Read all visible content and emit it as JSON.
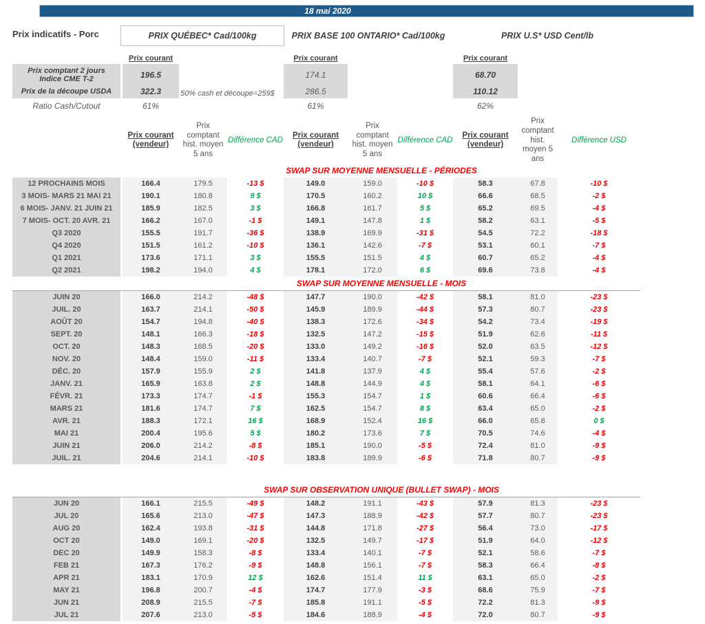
{
  "banner": {
    "date": "18 mai 2020"
  },
  "page_title": "Prix indicatifs - Porc",
  "markets": {
    "quebec": {
      "title": "PRIX QUÉBEC* Cad/100kg"
    },
    "ontario": {
      "title": "PRIX BASE 100 ONTARIO* Cad/100kg"
    },
    "us": {
      "title": "PRIX U.S* USD Cent/lb"
    }
  },
  "prix_courant_label": "Prix courant",
  "spot": {
    "row1_label_line1": "Prix comptant 2 jours",
    "row1_label_line2": "Indice CME T-2",
    "row2_label": "Prix de la découpe USDA",
    "row3_label": "Ratio Cash/Cutout",
    "row1": {
      "qc": "196.5",
      "on": "174.1",
      "us": "68.70"
    },
    "row2": {
      "qc": "322.3",
      "on": "286.5",
      "us": "110.12"
    },
    "row2_note": "50% cash et découpe=259$",
    "row3": {
      "qc": "61%",
      "on": "61%",
      "us": "62%"
    }
  },
  "column_headers": {
    "vendor": "Prix courant (vendeur)",
    "hist": "Prix comptant hist. moyen 5 ans",
    "diff_cad": "Différence CAD",
    "diff_usd": "Différence USD"
  },
  "colors": {
    "banner_blue": "#1e5a8a",
    "section_red": "#ff0000",
    "diff_green": "#00a650",
    "diff_red": "#ee0000",
    "label_gray": "#d9d9d9",
    "band_gray": "#f2f2f2"
  },
  "sections": [
    {
      "title": "SWAP SUR MOYENNE MENSUELLE - PÉRIODES",
      "rows": [
        {
          "label": "12 PROCHAINS MOIS",
          "qc": [
            "166.4",
            "179.5",
            "-13 $"
          ],
          "on": [
            "149.0",
            "159.0",
            "-10 $"
          ],
          "us": [
            "58.3",
            "67.8",
            "-10 $"
          ]
        },
        {
          "label": "3 MOIS- MARS 21 MAI 21",
          "qc": [
            "190.1",
            "180.8",
            "9 $"
          ],
          "on": [
            "170.5",
            "160.2",
            "10 $"
          ],
          "us": [
            "66.6",
            "68.5",
            "-2 $"
          ]
        },
        {
          "label": "6 MOIS- JANV. 21 JUIN 21",
          "qc": [
            "185.9",
            "182.5",
            "3 $"
          ],
          "on": [
            "166.8",
            "161.7",
            "5 $"
          ],
          "us": [
            "65.2",
            "69.5",
            "-4 $"
          ]
        },
        {
          "label": "7 MOIS- OCT. 20 AVR. 21",
          "qc": [
            "166.2",
            "167.0",
            "-1 $"
          ],
          "on": [
            "149.1",
            "147.8",
            "1 $"
          ],
          "us": [
            "58.2",
            "63.1",
            "-5 $"
          ]
        },
        {
          "label": "Q3 2020",
          "qc": [
            "155.5",
            "191.7",
            "-36 $"
          ],
          "on": [
            "138.9",
            "169.9",
            "-31 $"
          ],
          "us": [
            "54.5",
            "72.2",
            "-18 $"
          ]
        },
        {
          "label": "Q4 2020",
          "qc": [
            "151.5",
            "161.2",
            "-10 $"
          ],
          "on": [
            "136.1",
            "142.6",
            "-7 $"
          ],
          "us": [
            "53.1",
            "60.1",
            "-7 $"
          ]
        },
        {
          "label": "Q1 2021",
          "qc": [
            "173.6",
            "171.1",
            "3 $"
          ],
          "on": [
            "155.5",
            "151.5",
            "4 $"
          ],
          "us": [
            "60.7",
            "65.2",
            "-4 $"
          ]
        },
        {
          "label": "Q2 2021",
          "qc": [
            "198.2",
            "194.0",
            "4 $"
          ],
          "on": [
            "178.1",
            "172.0",
            "6 $"
          ],
          "us": [
            "69.6",
            "73.8",
            "-4 $"
          ]
        }
      ]
    },
    {
      "title": "SWAP SUR MOYENNE MENSUELLE - MOIS",
      "rows": [
        {
          "label": "JUIN 20",
          "qc": [
            "166.0",
            "214.2",
            "-48 $"
          ],
          "on": [
            "147.7",
            "190.0",
            "-42 $"
          ],
          "us": [
            "58.1",
            "81.0",
            "-23 $"
          ]
        },
        {
          "label": "JUIL. 20",
          "qc": [
            "163.7",
            "214.1",
            "-50 $"
          ],
          "on": [
            "145.9",
            "189.9",
            "-44 $"
          ],
          "us": [
            "57.3",
            "80.7",
            "-23 $"
          ]
        },
        {
          "label": "AOÛT 20",
          "qc": [
            "154.7",
            "194.8",
            "-40 $"
          ],
          "on": [
            "138.3",
            "172.6",
            "-34 $"
          ],
          "us": [
            "54.2",
            "73.4",
            "-19 $"
          ]
        },
        {
          "label": "SEPT. 20",
          "qc": [
            "148.1",
            "166.3",
            "-18 $"
          ],
          "on": [
            "132.5",
            "147.2",
            "-15 $"
          ],
          "us": [
            "51.9",
            "62.6",
            "-11 $"
          ]
        },
        {
          "label": "OCT. 20",
          "qc": [
            "148.3",
            "168.5",
            "-20 $"
          ],
          "on": [
            "133.0",
            "149.2",
            "-16 $"
          ],
          "us": [
            "52.0",
            "63.5",
            "-12 $"
          ]
        },
        {
          "label": "NOV. 20",
          "qc": [
            "148.4",
            "159.0",
            "-11 $"
          ],
          "on": [
            "133.4",
            "140.7",
            "-7 $"
          ],
          "us": [
            "52.1",
            "59.3",
            "-7 $"
          ]
        },
        {
          "label": "DÉC. 20",
          "qc": [
            "157.9",
            "155.9",
            "2 $"
          ],
          "on": [
            "141.8",
            "137.9",
            "4 $"
          ],
          "us": [
            "55.4",
            "57.6",
            "-2 $"
          ]
        },
        {
          "label": "JANV. 21",
          "qc": [
            "165.9",
            "163.8",
            "2 $"
          ],
          "on": [
            "148.8",
            "144.9",
            "4 $"
          ],
          "us": [
            "58.1",
            "64.1",
            "-6 $"
          ]
        },
        {
          "label": "FÉVR. 21",
          "qc": [
            "173.3",
            "174.7",
            "-1 $"
          ],
          "on": [
            "155.3",
            "154.7",
            "1 $"
          ],
          "us": [
            "60.6",
            "66.4",
            "-6 $"
          ]
        },
        {
          "label": "MARS 21",
          "qc": [
            "181.6",
            "174.7",
            "7 $"
          ],
          "on": [
            "162.5",
            "154.7",
            "8 $"
          ],
          "us": [
            "63.4",
            "65.0",
            "-2 $"
          ]
        },
        {
          "label": "AVR. 21",
          "qc": [
            "188.3",
            "172.1",
            "16 $"
          ],
          "on": [
            "168.9",
            "152.4",
            "16 $"
          ],
          "us": [
            "66.0",
            "65.8",
            "0 $"
          ]
        },
        {
          "label": "MAI 21",
          "qc": [
            "200.4",
            "195.6",
            "5 $"
          ],
          "on": [
            "180.2",
            "173.6",
            "7 $"
          ],
          "us": [
            "70.5",
            "74.6",
            "-4 $"
          ]
        },
        {
          "label": "JUIN 21",
          "qc": [
            "206.0",
            "214.2",
            "-8 $"
          ],
          "on": [
            "185.1",
            "190.0",
            "-5 $"
          ],
          "us": [
            "72.4",
            "81.0",
            "-9 $"
          ]
        },
        {
          "label": "JUIL. 21",
          "qc": [
            "204.6",
            "214.1",
            "-10 $"
          ],
          "on": [
            "183.8",
            "189.9",
            "-6 $"
          ],
          "us": [
            "71.8",
            "80.7",
            "-9 $"
          ]
        }
      ]
    },
    {
      "title": "SWAP SUR OBSERVATION UNIQUE (BULLET SWAP) - MOIS",
      "rows": [
        {
          "label": "JUN 20",
          "qc": [
            "166.1",
            "215.5",
            "-49 $"
          ],
          "on": [
            "148.2",
            "191.1",
            "-43 $"
          ],
          "us": [
            "57.9",
            "81.3",
            "-23 $"
          ]
        },
        {
          "label": "JUL 20",
          "qc": [
            "165.6",
            "213.0",
            "-47 $"
          ],
          "on": [
            "147.3",
            "188.9",
            "-42 $"
          ],
          "us": [
            "57.7",
            "80.7",
            "-23 $"
          ]
        },
        {
          "label": "AUG 20",
          "qc": [
            "162.4",
            "193.8",
            "-31 $"
          ],
          "on": [
            "144.8",
            "171.8",
            "-27 $"
          ],
          "us": [
            "56.4",
            "73.0",
            "-17 $"
          ]
        },
        {
          "label": "OCT 20",
          "qc": [
            "149.0",
            "169.1",
            "-20 $"
          ],
          "on": [
            "132.5",
            "149.7",
            "-17 $"
          ],
          "us": [
            "51.9",
            "64.0",
            "-12 $"
          ]
        },
        {
          "label": "DEC 20",
          "qc": [
            "149.9",
            "158.3",
            "-8 $"
          ],
          "on": [
            "133.4",
            "140.1",
            "-7 $"
          ],
          "us": [
            "52.1",
            "58.6",
            "-7 $"
          ]
        },
        {
          "label": "FEB 21",
          "qc": [
            "167.3",
            "176.2",
            "-9 $"
          ],
          "on": [
            "148.8",
            "156.1",
            "-7 $"
          ],
          "us": [
            "58.3",
            "66.4",
            "-8 $"
          ]
        },
        {
          "label": "APR 21",
          "qc": [
            "183.1",
            "170.9",
            "12 $"
          ],
          "on": [
            "162.6",
            "151.4",
            "11 $"
          ],
          "us": [
            "63.1",
            "65.0",
            "-2 $"
          ]
        },
        {
          "label": "MAY 21",
          "qc": [
            "196.8",
            "200.7",
            "-4 $"
          ],
          "on": [
            "174.7",
            "177.9",
            "-3 $"
          ],
          "us": [
            "68.6",
            "75.9",
            "-7 $"
          ]
        },
        {
          "label": "JUN 21",
          "qc": [
            "208.9",
            "215.5",
            "-7 $"
          ],
          "on": [
            "185.8",
            "191.1",
            "-5 $"
          ],
          "us": [
            "72.2",
            "81.3",
            "-9 $"
          ]
        },
        {
          "label": "JUL 21",
          "qc": [
            "207.6",
            "213.0",
            "-5 $"
          ],
          "on": [
            "184.6",
            "188.9",
            "-4 $"
          ],
          "us": [
            "72.0",
            "80.7",
            "-9 $"
          ]
        }
      ]
    }
  ]
}
